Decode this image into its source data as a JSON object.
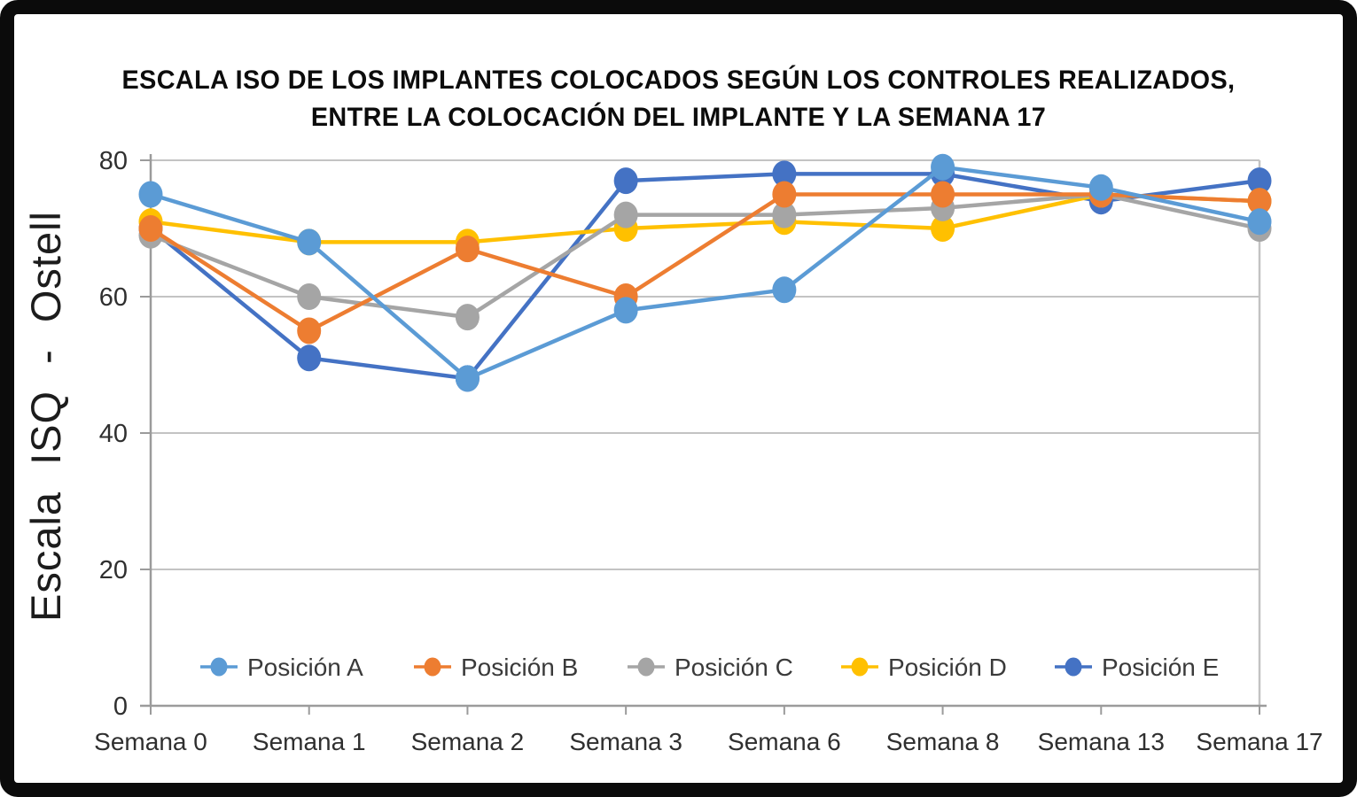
{
  "title": {
    "line1": "ESCALA ISO DE LOS IMPLANTES COLOCADOS SEGÚN LOS CONTROLES REALIZADOS,",
    "line2": "ENTRE LA COLOCACIÓN DEL IMPLANTE Y LA SEMANA 17"
  },
  "style": {
    "frame_color": "#0b0b0b",
    "grid_color": "#c3c3c3",
    "axis_color": "#9b9b9b",
    "tick_text_color": "#2f2f2f",
    "legend_text_color": "#3a3a3a",
    "ylabel_color": "#1c1c1c"
  },
  "chart_data": {
    "type": "line",
    "title": "ESCALA ISO DE LOS IMPLANTES COLOCADOS SEGÚN LOS CONTROLES REALIZADOS, ENTRE LA COLOCACIÓN DEL IMPLANTE Y LA SEMANA 17",
    "ylabel": "Escala ISQ - Ostell",
    "xlabel": "",
    "ylim": [
      0,
      80
    ],
    "yticks": [
      0,
      20,
      40,
      60,
      80
    ],
    "grid": true,
    "legend_position": "bottom-inside",
    "categories": [
      "Semana 0",
      "Semana 1",
      "Semana 2",
      "Semana 3",
      "Semana 6",
      "Semana 8",
      "Semana 13",
      "Semana 17"
    ],
    "series": [
      {
        "name": "Posición A",
        "color": "#5B9BD5",
        "values": [
          75,
          68,
          48,
          58,
          61,
          79,
          76,
          71
        ]
      },
      {
        "name": "Posición B",
        "color": "#ED7D31",
        "values": [
          70,
          55,
          67,
          60,
          75,
          75,
          75,
          74
        ]
      },
      {
        "name": "Posición C",
        "color": "#A5A5A5",
        "values": [
          69,
          60,
          57,
          72,
          72,
          73,
          75,
          70
        ]
      },
      {
        "name": "Posición D",
        "color": "#FFC000",
        "values": [
          71,
          68,
          68,
          70,
          71,
          70,
          75,
          74
        ]
      },
      {
        "name": "Posición E",
        "color": "#4472C4",
        "values": [
          70,
          51,
          48,
          77,
          78,
          78,
          74,
          77
        ]
      }
    ]
  }
}
